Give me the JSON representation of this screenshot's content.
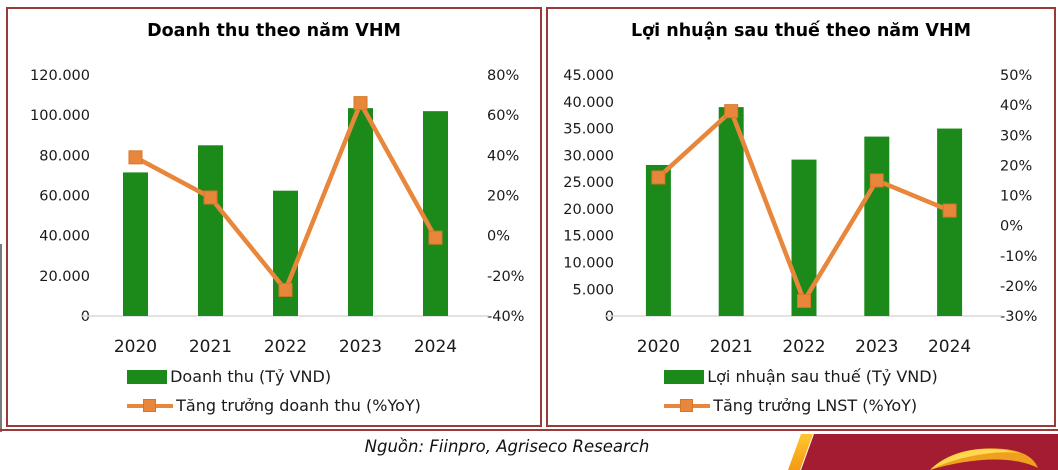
{
  "page": {
    "source_note": "Nguồn: Fiinpro, Agriseco Research"
  },
  "colors": {
    "bar_green": "#1B8A1B",
    "line_orange": "#E8873B",
    "marker_edge": "#D97626",
    "box_border": "#9A3A38",
    "banner_red": "#A31C31",
    "banner_yellow": "#F9B233",
    "baseline_gray": "#D9D9D9",
    "text": "#1a1a1a"
  },
  "chart_data": [
    {
      "type": "bar",
      "title": "Doanh thu theo năm VHM",
      "categories": [
        "2020",
        "2021",
        "2022",
        "2023",
        "2024"
      ],
      "series": [
        {
          "name": "Doanh thu (Tỷ VND)",
          "type": "bar",
          "axis": "left",
          "values": [
            71500,
            85000,
            62400,
            103500,
            102000
          ]
        },
        {
          "name": "Tăng trưởng doanh thu (%YoY)",
          "type": "line",
          "axis": "right",
          "values": [
            39,
            19,
            -27,
            66,
            -1
          ]
        }
      ],
      "left_axis": {
        "label": "Tỷ VND",
        "min": 0,
        "max": 120000,
        "tick_values": [
          120000,
          100000,
          80000,
          60000,
          40000,
          20000,
          0
        ],
        "ticks": [
          "120.000",
          "100.000",
          "80.000",
          "60.000",
          "40.000",
          "20.000",
          "0"
        ]
      },
      "right_axis": {
        "label": "%YoY",
        "min": -40,
        "max": 80,
        "tick_values": [
          80,
          60,
          40,
          20,
          0,
          -20,
          -40
        ],
        "ticks": [
          "80%",
          "60%",
          "40%",
          "20%",
          "0%",
          "-20%",
          "-40%"
        ]
      },
      "legend_position": "bottom",
      "grid": false
    },
    {
      "type": "bar",
      "title": "Lợi nhuận sau thuế theo năm VHM",
      "categories": [
        "2020",
        "2021",
        "2022",
        "2023",
        "2024"
      ],
      "series": [
        {
          "name": "Lợi nhuận sau thuế (Tỷ VND)",
          "type": "bar",
          "axis": "left",
          "values": [
            28200,
            39000,
            29200,
            33500,
            35000
          ]
        },
        {
          "name": "Tăng trưởng LNST (%YoY)",
          "type": "line",
          "axis": "right",
          "values": [
            16,
            38,
            -25,
            15,
            5
          ]
        }
      ],
      "left_axis": {
        "label": "Tỷ VND",
        "min": 0,
        "max": 45000,
        "tick_values": [
          45000,
          40000,
          35000,
          30000,
          25000,
          20000,
          15000,
          10000,
          5000,
          0
        ],
        "ticks": [
          "45.000",
          "40.000",
          "35.000",
          "30.000",
          "25.000",
          "20.000",
          "15.000",
          "10.000",
          "5.000",
          "0"
        ]
      },
      "right_axis": {
        "label": "%YoY",
        "min": -30,
        "max": 50,
        "tick_values": [
          50,
          40,
          30,
          20,
          10,
          0,
          -10,
          -20,
          -30
        ],
        "ticks": [
          "50%",
          "40%",
          "30%",
          "20%",
          "10%",
          "0%",
          "-10%",
          "-20%",
          "-30%"
        ]
      },
      "legend_position": "bottom",
      "grid": false
    }
  ]
}
